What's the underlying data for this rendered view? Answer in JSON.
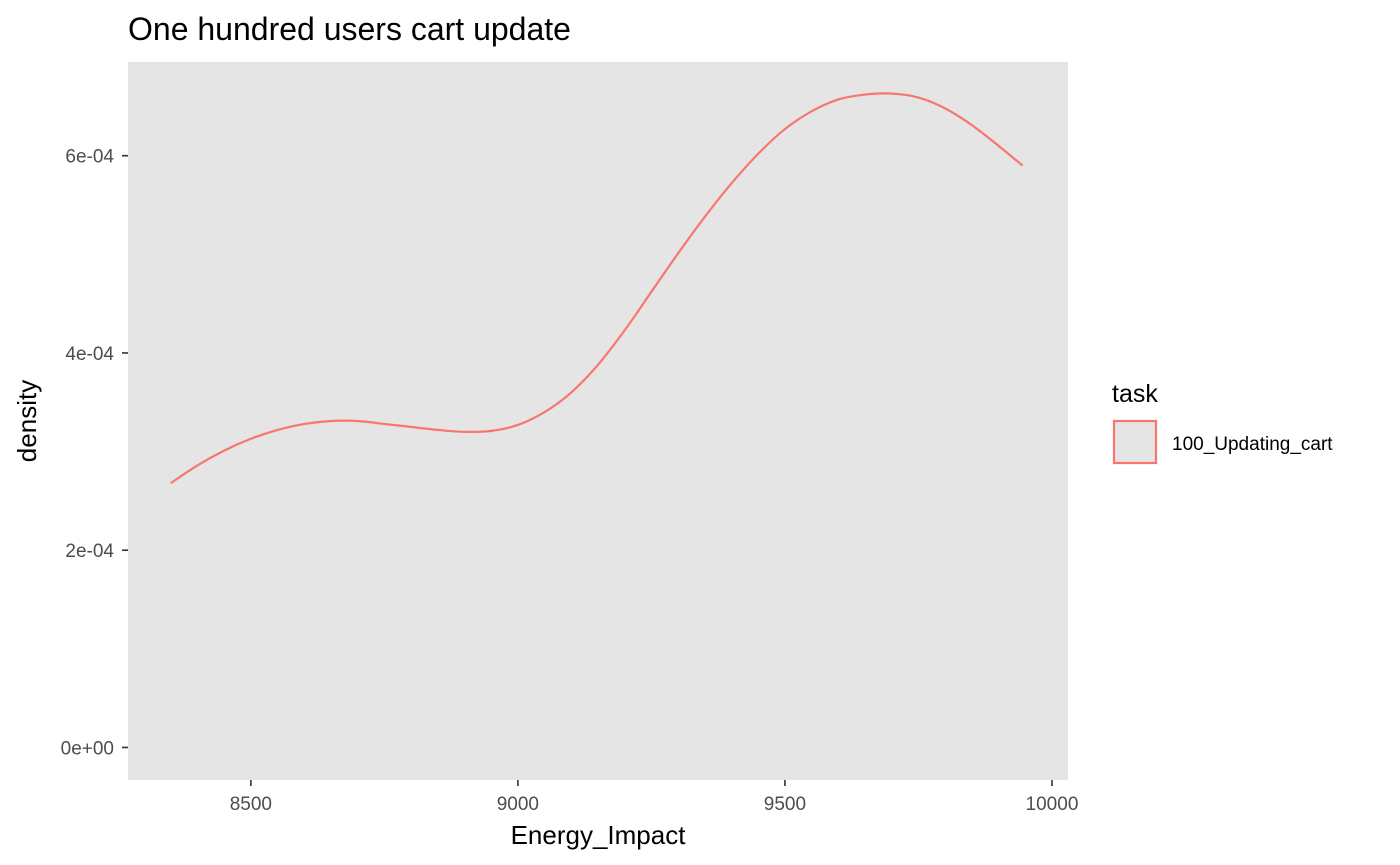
{
  "chart_data": {
    "type": "line",
    "title": "One hundred users cart update",
    "xlabel": "Energy_Impact",
    "ylabel": "density",
    "xlim": [
      8270,
      10030
    ],
    "ylim": [
      -3.3e-05,
      0.000695
    ],
    "x_ticks": [
      8500,
      9000,
      9500,
      10000
    ],
    "x_tick_labels": [
      "8500",
      "9000",
      "9500",
      "10000"
    ],
    "y_ticks": [
      0,
      0.0002,
      0.0004,
      0.0006
    ],
    "y_tick_labels": [
      "0e+00",
      "2e-04",
      "4e-04",
      "6e-04"
    ],
    "grid": false,
    "legend": {
      "title": "task",
      "position": "right"
    },
    "series": [
      {
        "name": "100_Updating_cart",
        "color": "#F8766D",
        "x": [
          8350,
          8400,
          8450,
          8500,
          8550,
          8600,
          8650,
          8700,
          8750,
          8800,
          8850,
          8900,
          8950,
          9000,
          9050,
          9100,
          9150,
          9200,
          9250,
          9300,
          9350,
          9400,
          9450,
          9500,
          9550,
          9600,
          9650,
          9700,
          9750,
          9800,
          9850,
          9900,
          9945
        ],
        "y": [
          0.000268,
          0.000286,
          0.000301,
          0.000313,
          0.000322,
          0.000328,
          0.000331,
          0.000331,
          0.000328,
          0.000325,
          0.000322,
          0.00032,
          0.000321,
          0.000327,
          0.00034,
          0.00036,
          0.000388,
          0.000423,
          0.000462,
          0.000501,
          0.000538,
          0.000572,
          0.000602,
          0.000627,
          0.000645,
          0.000657,
          0.000662,
          0.000663,
          0.000659,
          0.000648,
          0.000631,
          0.00061,
          0.00059
        ]
      }
    ]
  }
}
